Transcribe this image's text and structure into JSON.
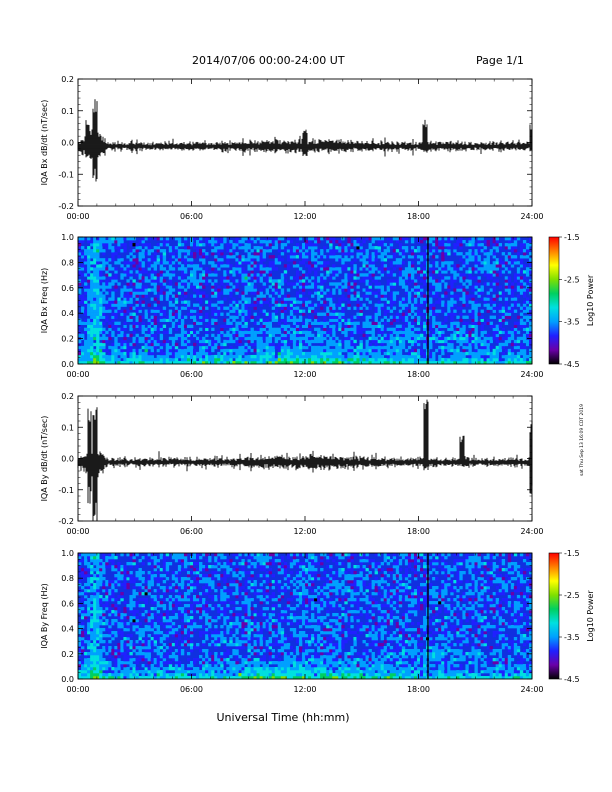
{
  "header": {
    "title": "2014/07/06  00:00-24:00 UT",
    "page_label": "Page 1/1"
  },
  "footer": {
    "xlabel": "Universal Time (hh:mm)",
    "side_stamp": "sat Thu Sep 13 16:09 CDT 2019"
  },
  "colors": {
    "trace": "#000000",
    "spectrogram_background": "#1030e0",
    "colormap": [
      "#000000",
      "#6a00a8",
      "#2020ff",
      "#00a0ff",
      "#00e0e0",
      "#00d060",
      "#80e000",
      "#ffff00",
      "#ff8000",
      "#ff0000"
    ]
  },
  "chart_data": [
    {
      "type": "line",
      "ylabel": "IQA Bx dB/dt (nT/sec)",
      "x_ticks": [
        "00:00",
        "06:00",
        "12:00",
        "18:00",
        "24:00"
      ],
      "xlim_hours": [
        0,
        24
      ],
      "ylim": [
        -0.2,
        0.2
      ],
      "y_ticks": [
        "0.2",
        "0.1",
        "0.0",
        "-0.1",
        "-0.2"
      ],
      "features": [
        {
          "hour": 0.5,
          "min": -0.05,
          "max": 0.08
        },
        {
          "hour": 0.9,
          "min": -0.13,
          "max": 0.14
        },
        {
          "hour": 12.0,
          "min": -0.05,
          "max": 0.05
        },
        {
          "hour": 18.35,
          "min": -0.03,
          "max": 0.08
        },
        {
          "hour": 24.0,
          "min": -0.04,
          "max": 0.06
        }
      ]
    },
    {
      "type": "heatmap",
      "ylabel": "IQA Bx Freq (Hz)",
      "x_ticks": [
        "00:00",
        "06:00",
        "12:00",
        "18:00",
        "24:00"
      ],
      "xlim_hours": [
        0,
        24
      ],
      "ylim": [
        0,
        1.0
      ],
      "y_ticks": [
        "1.0",
        "0.8",
        "0.6",
        "0.4",
        "0.2",
        "0.0"
      ],
      "colorbar": {
        "label": "Log10 Power",
        "ticks": [
          "-1.5",
          "-2.5",
          "-3.5",
          "-4.5"
        ],
        "range": [
          -4.5,
          -1.5
        ]
      },
      "features": [
        {
          "hour": 0.9,
          "note": "broadband burst"
        },
        {
          "hour": 18.5,
          "note": "vertical line"
        }
      ]
    },
    {
      "type": "line",
      "ylabel": "IQA By dB/dt (nT/sec)",
      "x_ticks": [
        "00:00",
        "06:00",
        "12:00",
        "18:00",
        "24:00"
      ],
      "xlim_hours": [
        0,
        24
      ],
      "ylim": [
        -0.2,
        0.2
      ],
      "y_ticks": [
        "0.2",
        "0.1",
        "0.0",
        "-0.1",
        "-0.2"
      ],
      "features": [
        {
          "hour": 0.6,
          "min": -0.15,
          "max": 0.17
        },
        {
          "hour": 0.9,
          "min": -0.2,
          "max": 0.19
        },
        {
          "hour": 18.4,
          "min": -0.04,
          "max": 0.2
        },
        {
          "hour": 20.3,
          "min": -0.03,
          "max": 0.08
        },
        {
          "hour": 24.0,
          "min": -0.13,
          "max": 0.14
        }
      ]
    },
    {
      "type": "heatmap",
      "ylabel": "IQA By Freq (Hz)",
      "x_ticks": [
        "00:00",
        "06:00",
        "12:00",
        "18:00",
        "24:00"
      ],
      "xlim_hours": [
        0,
        24
      ],
      "ylim": [
        0,
        1.0
      ],
      "y_ticks": [
        "1.0",
        "0.8",
        "0.6",
        "0.4",
        "0.2",
        "0.0"
      ],
      "colorbar": {
        "label": "Log10 Power",
        "ticks": [
          "-1.5",
          "-2.5",
          "-3.5",
          "-4.5"
        ],
        "range": [
          -4.5,
          -1.5
        ]
      },
      "features": [
        {
          "hour": 0.9,
          "note": "broadband burst"
        },
        {
          "hour": 18.5,
          "note": "vertical line"
        }
      ]
    }
  ]
}
